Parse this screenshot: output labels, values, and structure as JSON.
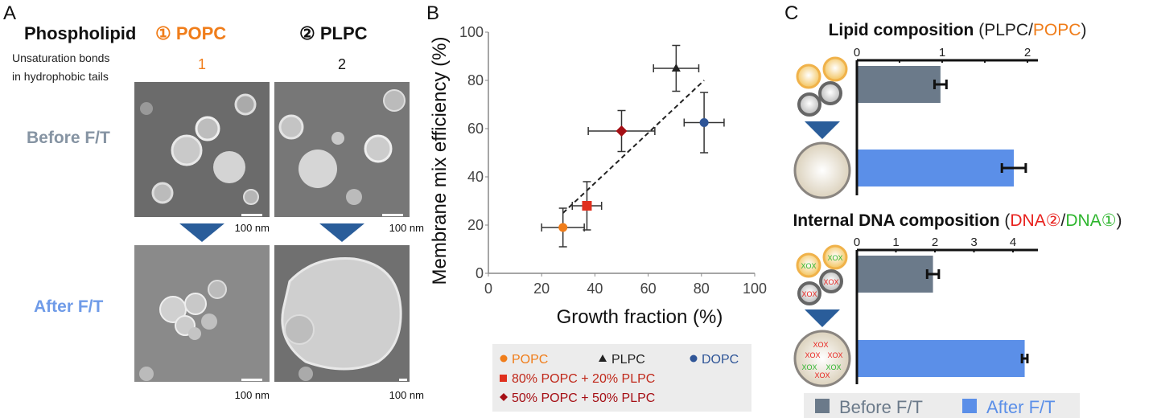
{
  "panel_labels": {
    "a": "A",
    "b": "B",
    "c": "C"
  },
  "panel_a": {
    "row_header": "Phospholipid",
    "col1": "① POPC",
    "col2": "② PLPC",
    "unsat_label_line1": "Unsaturation bonds",
    "unsat_label_line2": "in hydrophobic tails",
    "unsat_col1": "1",
    "unsat_col2": "2",
    "before_label": "Before F/T",
    "after_label": "After F/T",
    "scale_bar": "100 nm",
    "colors": {
      "popc": "#f07d1a",
      "before": "#8694a3",
      "after": "#6f9be8",
      "arrow": "#2a5d9a"
    }
  },
  "chart_data": [
    {
      "type": "scatter",
      "title": "",
      "xlabel": "Growth fraction (%)",
      "ylabel": "Membrane mix efficiency (%)",
      "xlim": [
        0,
        100
      ],
      "ylim": [
        0,
        100
      ],
      "xticks": [
        "0",
        "20",
        "40",
        "60",
        "80",
        "100"
      ],
      "yticks": [
        "0",
        "20",
        "40",
        "60",
        "80",
        "100"
      ],
      "series": [
        {
          "name": "POPC",
          "x": 28,
          "y": 19,
          "xerr": 8,
          "yerr": 8,
          "marker": "circle",
          "color": "#f07d1a"
        },
        {
          "name": "80% POPC + 20% PLPC",
          "x": 37,
          "y": 28,
          "xerr": 5.5,
          "yerr": 10,
          "marker": "square",
          "color": "#e0301e"
        },
        {
          "name": "50% POPC + 50% PLPC",
          "x": 50,
          "y": 59,
          "xerr": 12.5,
          "yerr": 8.5,
          "marker": "diamond",
          "color": "#a50f15"
        },
        {
          "name": "PLPC",
          "x": 70.5,
          "y": 85,
          "xerr": 8.5,
          "yerr": 9.5,
          "marker": "triangle",
          "color": "#222222"
        },
        {
          "name": "DOPC",
          "x": 81,
          "y": 62.5,
          "xerr": 7.5,
          "yerr": 12.5,
          "marker": "circle",
          "color": "#2f5597"
        }
      ],
      "trendline": {
        "x": [
          28,
          81
        ],
        "y": [
          25,
          80
        ],
        "style": "dashed"
      },
      "legend": {
        "placement": "bottom",
        "rows": [
          [
            "POPC",
            "PLPC",
            "DOPC"
          ],
          [
            "80% POPC + 20% PLPC"
          ],
          [
            "50% POPC + 50% PLPC"
          ]
        ]
      }
    },
    {
      "type": "bar",
      "orientation": "horizontal",
      "title_main": "Lipid composition ",
      "title_paren_open": "(",
      "title_part1": "PLPC",
      "title_sep": "/",
      "title_part2": "POPC",
      "title_paren_close": ")",
      "title_colors": {
        "part1": "#222222",
        "part2": "#f07d1a"
      },
      "categories": [
        "Before F/T",
        "After F/T"
      ],
      "values": [
        0.98,
        1.84
      ],
      "errors": [
        0.07,
        0.14
      ],
      "xlim": [
        0,
        2.1
      ],
      "xticks": [
        "0",
        "1",
        "2"
      ],
      "tick_values": [
        0,
        1,
        2
      ],
      "minor_ticks": [
        0.5,
        1.5
      ]
    },
    {
      "type": "bar",
      "orientation": "horizontal",
      "title_main": "Internal DNA composition ",
      "title_paren_open": "(",
      "title_part1": "DNA②",
      "title_sep": "/",
      "title_part2": "DNA①",
      "title_paren_close": ")",
      "title_colors": {
        "part1": "#e8211d",
        "part2": "#2db52d"
      },
      "categories": [
        "Before F/T",
        "After F/T"
      ],
      "values": [
        1.95,
        4.3
      ],
      "errors": [
        0.15,
        0.07
      ],
      "xlim": [
        0,
        4.6
      ],
      "xticks": [
        "0",
        "1",
        "2",
        "3",
        "4"
      ],
      "tick_values": [
        0,
        1,
        2,
        3,
        4
      ],
      "minor_ticks": []
    }
  ],
  "bar_legend": {
    "before": "Before F/T",
    "after": "After F/T",
    "colors": {
      "before": "#6b7a8a",
      "after": "#5b8fe8"
    }
  }
}
